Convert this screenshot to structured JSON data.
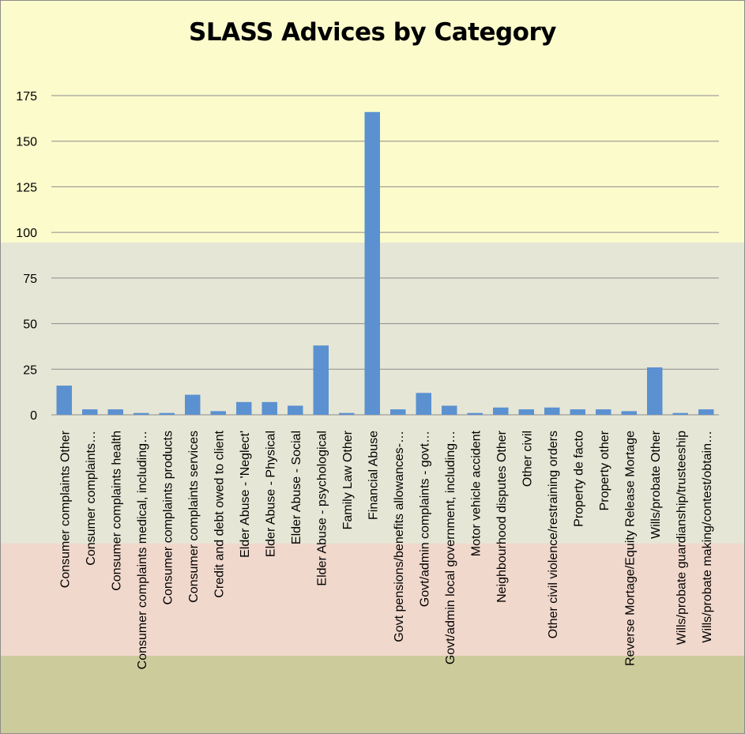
{
  "chart_data": {
    "type": "bar",
    "title": "SLASS Advices by Category",
    "xlabel": "",
    "ylabel": "",
    "ylim": [
      0,
      175
    ],
    "yticks": [
      "0",
      "25",
      "50",
      "75",
      "100",
      "125",
      "150",
      "175"
    ],
    "grid": true,
    "categories": [
      "Consumer complaints Other",
      "Consumer complaints…",
      "Consumer complaints health",
      "Consumer complaints medical, including…",
      "Consumer complaints products",
      "Consumer complaints services",
      "Credit and debt owed to client",
      "Elder Abuse - 'Neglect'",
      "Elder Abuse - Physical",
      "Elder Abuse - Social",
      "Elder Abuse - psychological",
      "Family Law Other",
      "Financial Abuse",
      "Govt pensions/benefits allowances-…",
      "Govt/admin complaints - govt…",
      "Govt/admin local government, including…",
      "Motor vehicle accident",
      "Neighbourhood disputes Other",
      "Other civil",
      "Other civil violence/restraining orders",
      "Property de facto",
      "Property other",
      "Reverse Mortage/Equity Release Mortage",
      "Wills/probate Other",
      "Wills/probate guardianship/trusteeship",
      "Wills/probate making/contest/obtain…"
    ],
    "values": [
      16,
      3,
      3,
      1,
      1,
      11,
      2,
      7,
      7,
      5,
      38,
      1,
      166,
      3,
      12,
      5,
      1,
      4,
      3,
      4,
      3,
      3,
      2,
      26,
      1,
      3
    ],
    "bar_color": "#5b91d0",
    "gridline_color": "#8c8c8c",
    "background_bands": [
      "#fbfbcc",
      "#e6e6d6",
      "#f1d8cc",
      "#cbcb9c"
    ]
  }
}
